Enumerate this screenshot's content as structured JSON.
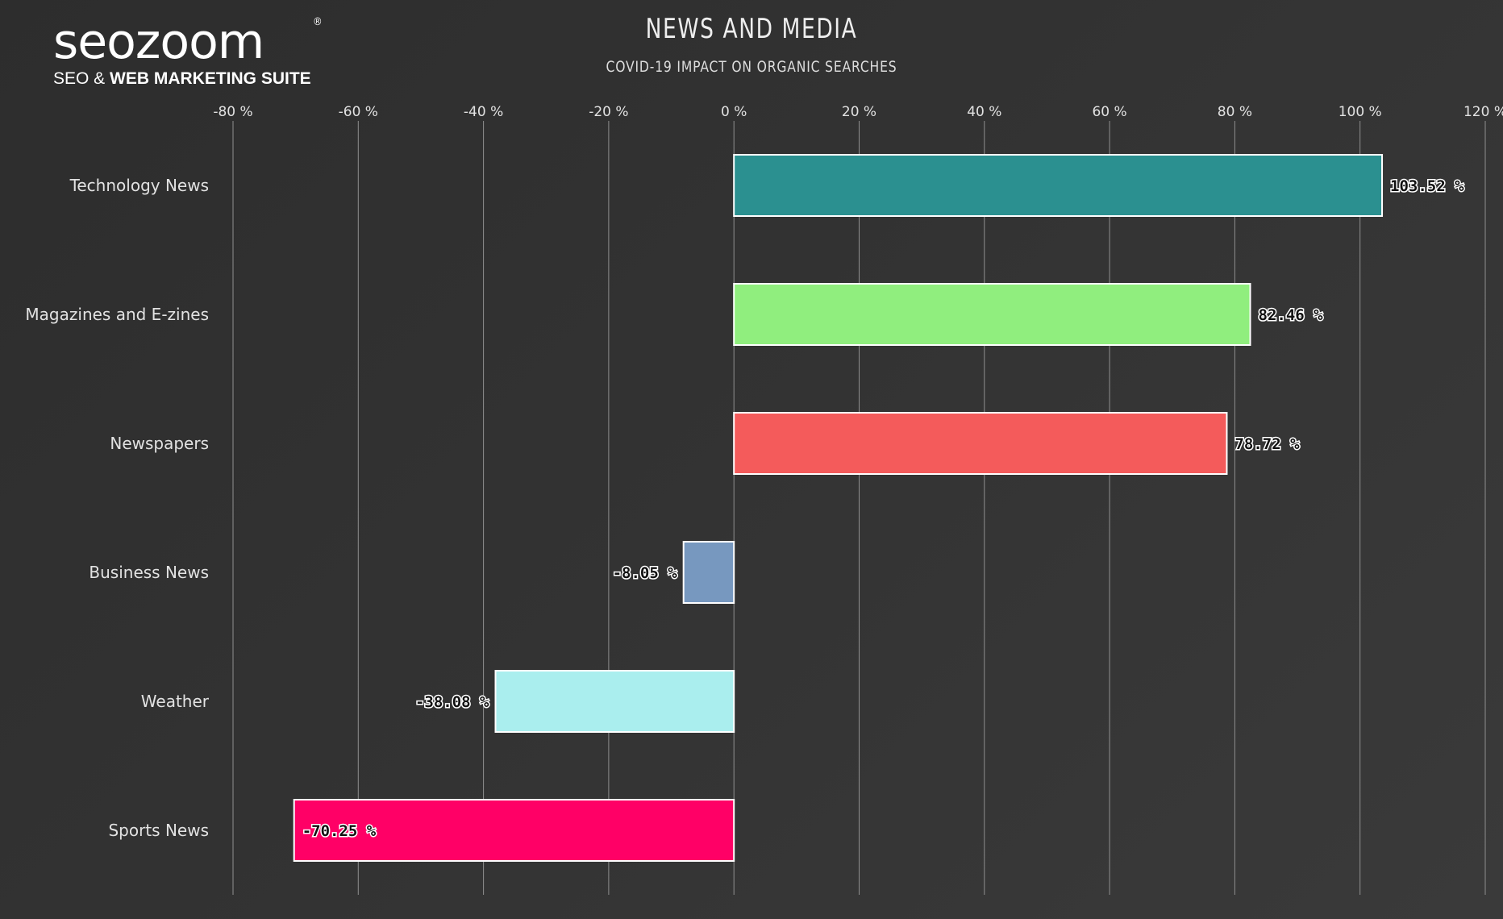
{
  "logo": {
    "wordmark": "seozoom",
    "registered": "®",
    "tagline_plain": "SEO & ",
    "tagline_bold": "WEB MARKETING SUITE"
  },
  "chart_data": {
    "type": "bar",
    "orientation": "horizontal",
    "title": "NEWS AND MEDIA",
    "subtitle": "COVID-19 IMPACT ON ORGANIC SEARCHES",
    "xlim": [
      -80,
      120
    ],
    "ticks": [
      -80,
      -60,
      -40,
      -20,
      0,
      20,
      40,
      60,
      80,
      100,
      120
    ],
    "tick_labels": [
      "-80 %",
      "-60 %",
      "-40 %",
      "-20 %",
      "0 %",
      "20 %",
      "40 %",
      "60 %",
      "80 %",
      "100 %",
      "120 %"
    ],
    "grid": true,
    "categories": [
      "Technology News",
      "Magazines and E-zines",
      "Newspapers",
      "Business News",
      "Weather",
      "Sports News"
    ],
    "values": [
      103.52,
      82.46,
      78.72,
      -8.05,
      -38.08,
      -70.25
    ],
    "value_labels": [
      "103.52 %",
      "82.46 %",
      "78.72 %",
      "-8.05 %",
      "-38.08 %",
      "-70.25 %"
    ],
    "colors": [
      "#2b9090",
      "#90ee7e",
      "#f45b5b",
      "#7798bf",
      "#aaeeee",
      "#ff0066"
    ]
  }
}
